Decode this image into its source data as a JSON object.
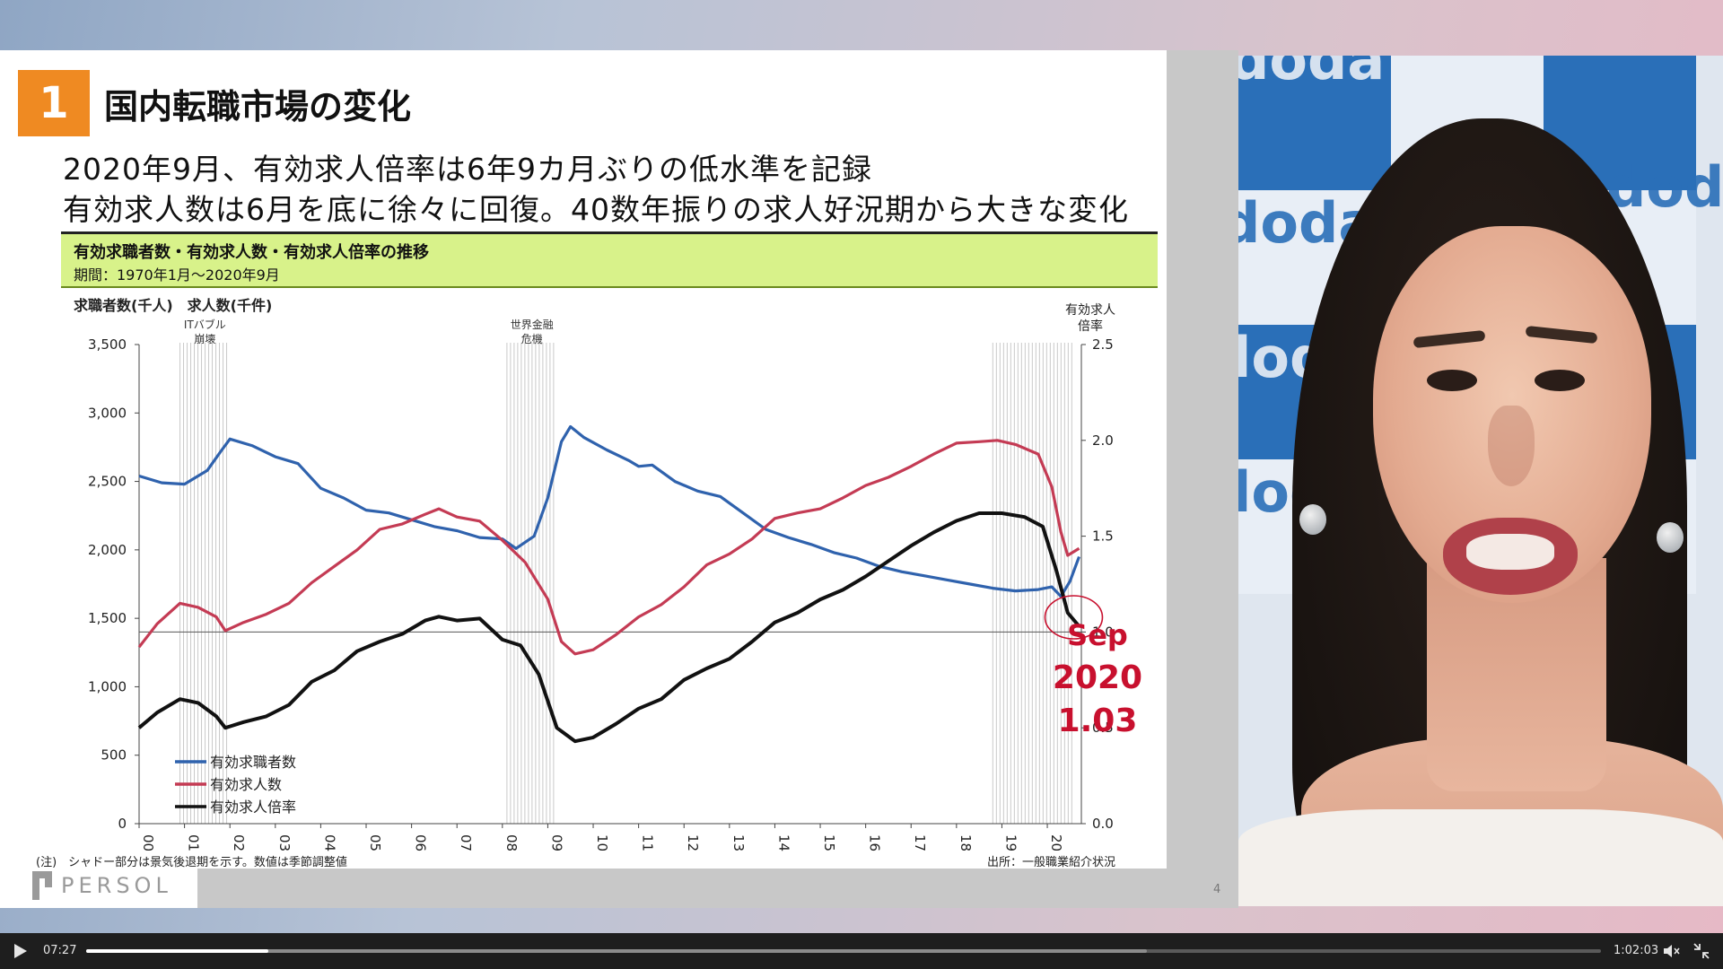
{
  "slide": {
    "section_number": "1",
    "title": "国内転職市場の変化",
    "headline_1": "2020年9月、有効求人倍率は6年9カ月ぶりの低水準を記録",
    "headline_2": "有効求人数は6月を底に徐々に回復。40数年振りの求人好況期から大きな変化",
    "chart_title": "有効求職者数・有効求人数・有効求人倍率の推移",
    "chart_period": "期間：1970年1月～2020年9月",
    "note": "(注)　シャドー部分は景気後退期を示す。数値は季節調整値",
    "source": "出所：一般職業紹介状況",
    "page_number": "4",
    "logo_text": "PERSOL"
  },
  "chart_data": {
    "type": "line",
    "y_left_label": "求職者数(千人)　求人数(千件)",
    "y_right_label_1": "有効求人",
    "y_right_label_2": "倍率",
    "y_left_ticks": [
      "0",
      "500",
      "1,000",
      "1,500",
      "2,000",
      "2,500",
      "3,000",
      "3,500"
    ],
    "y_right_ticks": [
      "0.0",
      "0.5",
      "1.0",
      "1.5",
      "2.0",
      "2.5"
    ],
    "ylim_left": [
      0,
      3500
    ],
    "ylim_right": [
      0,
      2.5
    ],
    "x_ticks": [
      "00",
      "01",
      "02",
      "03",
      "04",
      "05",
      "06",
      "07",
      "08",
      "09",
      "10",
      "11",
      "12",
      "13",
      "14",
      "15",
      "16",
      "17",
      "18",
      "19",
      "20"
    ],
    "xlim": [
      2000,
      2020.75
    ],
    "recessions": [
      {
        "label_1": "ITバブル",
        "label_2": "崩壊",
        "start": 2000.9,
        "end": 2002.0
      },
      {
        "label_1": "世界金融",
        "label_2": "危機",
        "start": 2008.1,
        "end": 2009.2
      },
      {
        "label_1": "",
        "label_2": "",
        "start": 2018.8,
        "end": 2020.6
      }
    ],
    "reference_line_ratio": 1.0,
    "series": [
      {
        "name": "有効求職者数",
        "axis": "left",
        "color": "#2f62ad",
        "points": [
          [
            2000,
            2540
          ],
          [
            2000.5,
            2490
          ],
          [
            2001,
            2480
          ],
          [
            2001.5,
            2580
          ],
          [
            2001.8,
            2720
          ],
          [
            2002,
            2810
          ],
          [
            2002.5,
            2760
          ],
          [
            2003,
            2680
          ],
          [
            2003.5,
            2630
          ],
          [
            2004,
            2450
          ],
          [
            2004.5,
            2380
          ],
          [
            2005,
            2290
          ],
          [
            2005.5,
            2270
          ],
          [
            2006,
            2220
          ],
          [
            2006.5,
            2170
          ],
          [
            2007,
            2140
          ],
          [
            2007.5,
            2090
          ],
          [
            2008,
            2080
          ],
          [
            2008.3,
            2010
          ],
          [
            2008.7,
            2100
          ],
          [
            2009,
            2380
          ],
          [
            2009.3,
            2790
          ],
          [
            2009.5,
            2900
          ],
          [
            2009.8,
            2820
          ],
          [
            2010.3,
            2730
          ],
          [
            2010.8,
            2650
          ],
          [
            2011,
            2610
          ],
          [
            2011.3,
            2620
          ],
          [
            2011.8,
            2500
          ],
          [
            2012.3,
            2430
          ],
          [
            2012.8,
            2390
          ],
          [
            2013.3,
            2270
          ],
          [
            2013.8,
            2150
          ],
          [
            2014.3,
            2090
          ],
          [
            2014.8,
            2040
          ],
          [
            2015.3,
            1980
          ],
          [
            2015.8,
            1940
          ],
          [
            2016.3,
            1880
          ],
          [
            2016.8,
            1840
          ],
          [
            2017.3,
            1810
          ],
          [
            2017.8,
            1780
          ],
          [
            2018.3,
            1750
          ],
          [
            2018.8,
            1720
          ],
          [
            2019.3,
            1700
          ],
          [
            2019.8,
            1710
          ],
          [
            2020.1,
            1730
          ],
          [
            2020.3,
            1660
          ],
          [
            2020.5,
            1770
          ],
          [
            2020.7,
            1950
          ]
        ]
      },
      {
        "name": "有効求人数",
        "axis": "left",
        "color": "#c43b54",
        "points": [
          [
            2000,
            1290
          ],
          [
            2000.4,
            1460
          ],
          [
            2000.9,
            1610
          ],
          [
            2001.3,
            1580
          ],
          [
            2001.7,
            1510
          ],
          [
            2001.9,
            1410
          ],
          [
            2002.3,
            1470
          ],
          [
            2002.8,
            1530
          ],
          [
            2003.3,
            1610
          ],
          [
            2003.8,
            1760
          ],
          [
            2004.3,
            1880
          ],
          [
            2004.8,
            2000
          ],
          [
            2005.3,
            2150
          ],
          [
            2005.8,
            2190
          ],
          [
            2006.3,
            2260
          ],
          [
            2006.6,
            2300
          ],
          [
            2007,
            2240
          ],
          [
            2007.5,
            2210
          ],
          [
            2008,
            2070
          ],
          [
            2008.5,
            1910
          ],
          [
            2009,
            1640
          ],
          [
            2009.3,
            1330
          ],
          [
            2009.6,
            1240
          ],
          [
            2010,
            1270
          ],
          [
            2010.5,
            1380
          ],
          [
            2011,
            1510
          ],
          [
            2011.5,
            1600
          ],
          [
            2012,
            1730
          ],
          [
            2012.5,
            1890
          ],
          [
            2013,
            1970
          ],
          [
            2013.5,
            2080
          ],
          [
            2014,
            2230
          ],
          [
            2014.5,
            2270
          ],
          [
            2015,
            2300
          ],
          [
            2015.5,
            2380
          ],
          [
            2016,
            2470
          ],
          [
            2016.5,
            2530
          ],
          [
            2017,
            2610
          ],
          [
            2017.5,
            2700
          ],
          [
            2018,
            2780
          ],
          [
            2018.5,
            2790
          ],
          [
            2018.9,
            2800
          ],
          [
            2019.3,
            2770
          ],
          [
            2019.8,
            2700
          ],
          [
            2020.1,
            2460
          ],
          [
            2020.3,
            2130
          ],
          [
            2020.45,
            1960
          ],
          [
            2020.7,
            2010
          ]
        ]
      },
      {
        "name": "有効求人倍率",
        "axis": "right",
        "color": "#111111",
        "points": [
          [
            2000,
            0.5
          ],
          [
            2000.4,
            0.58
          ],
          [
            2000.9,
            0.65
          ],
          [
            2001.3,
            0.63
          ],
          [
            2001.7,
            0.56
          ],
          [
            2001.9,
            0.5
          ],
          [
            2002.3,
            0.53
          ],
          [
            2002.8,
            0.56
          ],
          [
            2003.3,
            0.62
          ],
          [
            2003.8,
            0.74
          ],
          [
            2004.3,
            0.8
          ],
          [
            2004.8,
            0.9
          ],
          [
            2005.3,
            0.95
          ],
          [
            2005.8,
            0.99
          ],
          [
            2006.3,
            1.06
          ],
          [
            2006.6,
            1.08
          ],
          [
            2007,
            1.06
          ],
          [
            2007.5,
            1.07
          ],
          [
            2008,
            0.96
          ],
          [
            2008.4,
            0.93
          ],
          [
            2008.8,
            0.78
          ],
          [
            2009.2,
            0.5
          ],
          [
            2009.6,
            0.43
          ],
          [
            2010,
            0.45
          ],
          [
            2010.5,
            0.52
          ],
          [
            2011,
            0.6
          ],
          [
            2011.5,
            0.65
          ],
          [
            2012,
            0.75
          ],
          [
            2012.5,
            0.81
          ],
          [
            2013,
            0.86
          ],
          [
            2013.5,
            0.95
          ],
          [
            2014,
            1.05
          ],
          [
            2014.5,
            1.1
          ],
          [
            2015,
            1.17
          ],
          [
            2015.5,
            1.22
          ],
          [
            2016,
            1.29
          ],
          [
            2016.5,
            1.37
          ],
          [
            2017,
            1.45
          ],
          [
            2017.5,
            1.52
          ],
          [
            2018,
            1.58
          ],
          [
            2018.5,
            1.62
          ],
          [
            2019,
            1.62
          ],
          [
            2019.5,
            1.6
          ],
          [
            2019.9,
            1.55
          ],
          [
            2020.2,
            1.32
          ],
          [
            2020.45,
            1.1
          ],
          [
            2020.7,
            1.03
          ]
        ]
      }
    ],
    "annotation": {
      "line1": "Sep",
      "line2": "2020",
      "line3": "1.03",
      "color": "#c8102e"
    }
  },
  "player": {
    "time_current": "07:27",
    "time_total": "1:02:03",
    "progress": 0.12,
    "buffered": 0.7
  },
  "webcam": {
    "backdrop_text": "doda"
  }
}
